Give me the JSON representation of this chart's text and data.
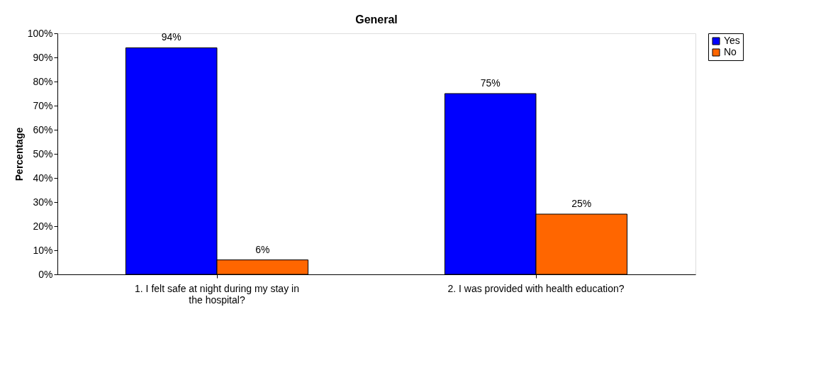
{
  "chart_data": {
    "type": "bar",
    "title": "General",
    "ylabel": "Percentage",
    "categories": [
      "1.  I felt safe at night during my stay in the hospital?",
      "2.  I was provided with health education?"
    ],
    "series": [
      {
        "name": "Yes",
        "color": "#0000ff",
        "values": [
          94,
          75
        ],
        "value_labels": [
          "94%",
          "75%"
        ]
      },
      {
        "name": "No",
        "color": "#ff6600",
        "values": [
          6,
          25
        ],
        "value_labels": [
          "6%",
          "25%"
        ]
      }
    ],
    "ylim": [
      0,
      100
    ],
    "yticks": [
      {
        "value": 0,
        "label": "0%"
      },
      {
        "value": 10,
        "label": "10%"
      },
      {
        "value": 20,
        "label": "20%"
      },
      {
        "value": 30,
        "label": "30%"
      },
      {
        "value": 40,
        "label": "40%"
      },
      {
        "value": 50,
        "label": "50%"
      },
      {
        "value": 60,
        "label": "60%"
      },
      {
        "value": 70,
        "label": "70%"
      },
      {
        "value": 80,
        "label": "80%"
      },
      {
        "value": 90,
        "label": "90%"
      },
      {
        "value": 100,
        "label": "100%"
      }
    ],
    "grid": false,
    "legend": "right"
  }
}
